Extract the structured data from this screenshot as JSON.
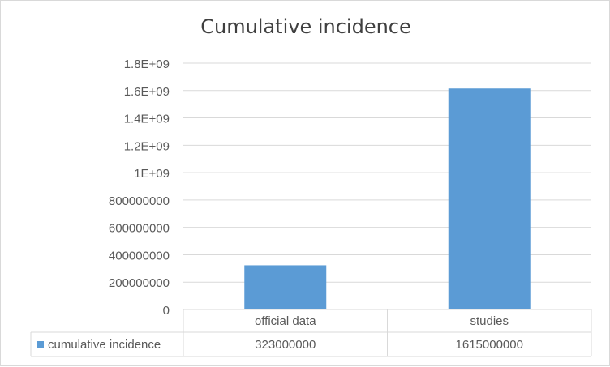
{
  "chart_data": {
    "type": "bar",
    "title": "Cumulative incidence",
    "categories": [
      "official data",
      "studies"
    ],
    "series": [
      {
        "name": "cumulative incidence",
        "values": [
          323000000,
          1615000000
        ],
        "value_labels": [
          "323000000",
          "1615000000"
        ],
        "color": "#5b9bd5"
      }
    ],
    "ylim": [
      0,
      1800000000
    ],
    "yticks": [
      0,
      200000000,
      400000000,
      600000000,
      800000000,
      1000000000,
      1200000000,
      1400000000,
      1600000000,
      1800000000
    ],
    "ytick_labels": [
      "0",
      "200000000",
      "400000000",
      "600000000",
      "800000000",
      "1E+09",
      "1.2E+09",
      "1.4E+09",
      "1.6E+09",
      "1.8E+09"
    ],
    "grid": true,
    "data_table": true,
    "colors": {
      "bar": "#5b9bd5",
      "grid": "#d9d9d9",
      "text": "#595959",
      "title": "#404040"
    }
  }
}
